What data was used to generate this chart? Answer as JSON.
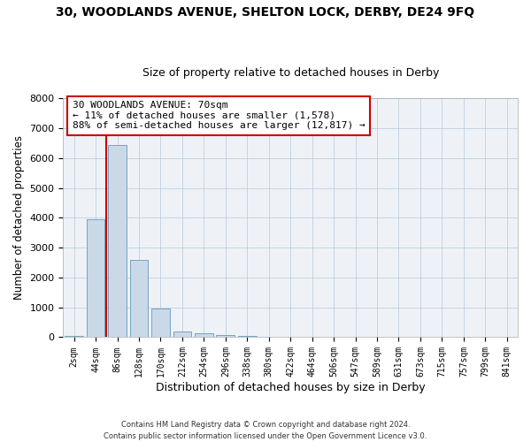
{
  "title1": "30, WOODLANDS AVENUE, SHELTON LOCK, DERBY, DE24 9FQ",
  "title2": "Size of property relative to detached houses in Derby",
  "xlabel": "Distribution of detached houses by size in Derby",
  "ylabel": "Number of detached properties",
  "footer": "Contains HM Land Registry data © Crown copyright and database right 2024.\nContains public sector information licensed under the Open Government Licence v3.0.",
  "bin_labels": [
    "2sqm",
    "44sqm",
    "86sqm",
    "128sqm",
    "170sqm",
    "212sqm",
    "254sqm",
    "296sqm",
    "338sqm",
    "380sqm",
    "422sqm",
    "464sqm",
    "506sqm",
    "547sqm",
    "589sqm",
    "631sqm",
    "673sqm",
    "715sqm",
    "757sqm",
    "799sqm",
    "841sqm"
  ],
  "bar_values": [
    50,
    3950,
    6450,
    2600,
    950,
    200,
    120,
    70,
    30,
    10,
    5,
    0,
    0,
    0,
    0,
    0,
    0,
    0,
    0,
    0,
    0
  ],
  "bar_color": "#c9d9e8",
  "bar_edge_color": "#6699bb",
  "vline_x": 1.5,
  "vline_color": "#cc0000",
  "annotation_text": "30 WOODLANDS AVENUE: 70sqm\n← 11% of detached houses are smaller (1,578)\n88% of semi-detached houses are larger (12,817) →",
  "annotation_box_color": "#ffffff",
  "annotation_box_edge": "#cc0000",
  "ylim": [
    0,
    8000
  ],
  "yticks": [
    0,
    1000,
    2000,
    3000,
    4000,
    5000,
    6000,
    7000,
    8000
  ],
  "bg_color": "#eef2f7",
  "title1_fontsize": 10,
  "title2_fontsize": 9,
  "xlabel_fontsize": 9,
  "ylabel_fontsize": 8.5,
  "annot_fontsize": 8,
  "tick_fontsize": 7,
  "footer_fontsize": 6
}
